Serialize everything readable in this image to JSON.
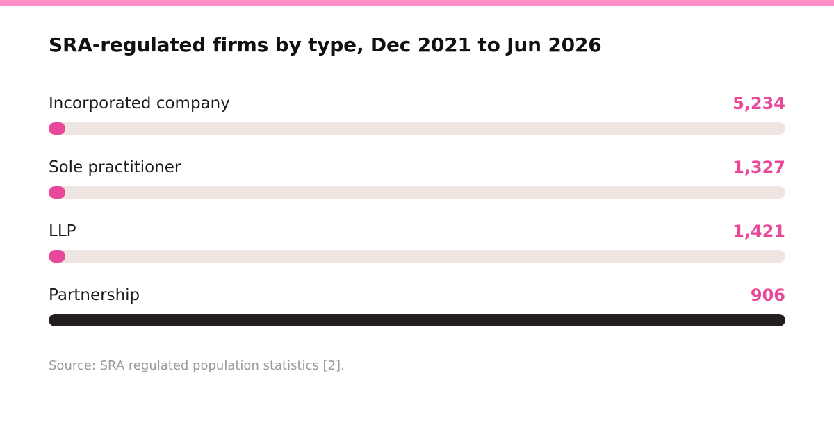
{
  "colors": {
    "top_bar": "#ff8fc9",
    "accent": "#e8489a",
    "dark": "#231f20",
    "track": "#efe6e1"
  },
  "chart_data": {
    "type": "bar",
    "title": "SRA-regulated firms by type, Dec 2021 to Jun 2026",
    "categories": [
      "Incorporated company",
      "Sole practitioner",
      "LLP",
      "Partnership"
    ],
    "value_labels": [
      "5,234",
      "1,327",
      "1,421",
      "906"
    ],
    "values": [
      5234,
      1327,
      1421,
      906
    ],
    "bar_fill_fraction": [
      0.02,
      0.02,
      0.02,
      1.0
    ],
    "bar_colors": [
      "#e8489a",
      "#e8489a",
      "#e8489a",
      "#231f20"
    ],
    "value_colors": [
      "#e8489a",
      "#e8489a",
      "#e8489a",
      "#e8489a"
    ],
    "source": "Source: SRA regulated population statistics [2]."
  }
}
